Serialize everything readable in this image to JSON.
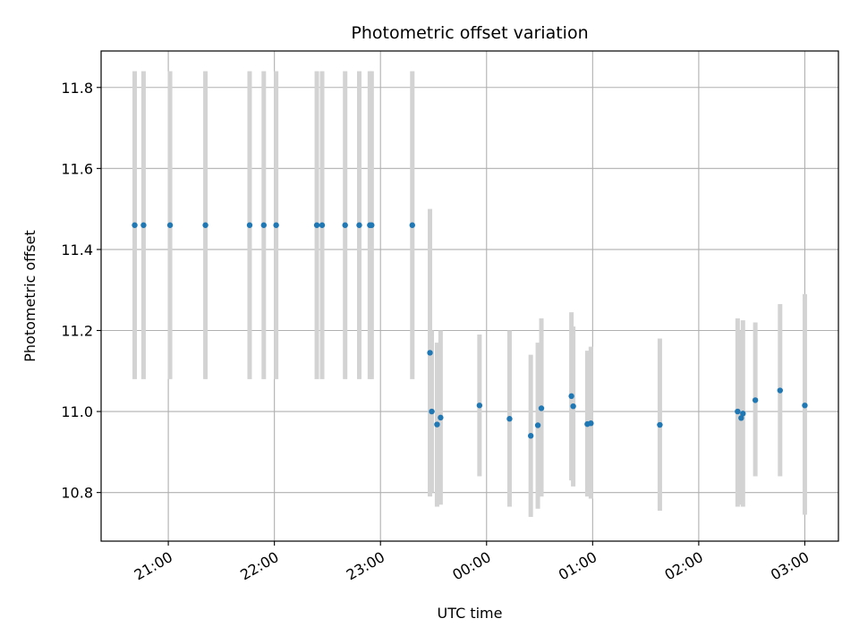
{
  "chart_data": {
    "type": "scatter",
    "title": "Photometric offset variation",
    "xlabel": "UTC time",
    "ylabel": "Photometric offset",
    "x_ticks": [
      "21:00",
      "22:00",
      "23:00",
      "00:00",
      "01:00",
      "02:00",
      "03:00"
    ],
    "y_ticks": [
      "10.8",
      "11.0",
      "11.2",
      "11.4",
      "11.6",
      "11.8"
    ],
    "xlim": [
      "20:22",
      "03:19"
    ],
    "ylim": [
      10.68,
      11.89
    ],
    "grid": true,
    "colors": {
      "point": "#1f77b4",
      "errorbar": "#d3d3d3",
      "grid": "#b0b0b0"
    },
    "points": [
      {
        "t": "20:41",
        "y": 11.46,
        "lo": 11.08,
        "hi": 11.84
      },
      {
        "t": "20:46",
        "y": 11.46,
        "lo": 11.08,
        "hi": 11.84
      },
      {
        "t": "21:01",
        "y": 11.46,
        "lo": 11.08,
        "hi": 11.84
      },
      {
        "t": "21:21",
        "y": 11.46,
        "lo": 11.08,
        "hi": 11.84
      },
      {
        "t": "21:46",
        "y": 11.46,
        "lo": 11.08,
        "hi": 11.84
      },
      {
        "t": "21:54",
        "y": 11.46,
        "lo": 11.08,
        "hi": 11.84
      },
      {
        "t": "22:01",
        "y": 11.46,
        "lo": 11.08,
        "hi": 11.84
      },
      {
        "t": "22:24",
        "y": 11.46,
        "lo": 11.08,
        "hi": 11.84
      },
      {
        "t": "22:27",
        "y": 11.46,
        "lo": 11.08,
        "hi": 11.84
      },
      {
        "t": "22:40",
        "y": 11.46,
        "lo": 11.08,
        "hi": 11.84
      },
      {
        "t": "22:48",
        "y": 11.46,
        "lo": 11.08,
        "hi": 11.84
      },
      {
        "t": "22:54",
        "y": 11.46,
        "lo": 11.08,
        "hi": 11.84
      },
      {
        "t": "22:55",
        "y": 11.46,
        "lo": 11.08,
        "hi": 11.84
      },
      {
        "t": "23:18",
        "y": 11.46,
        "lo": 11.08,
        "hi": 11.84
      },
      {
        "t": "23:28",
        "y": 11.145,
        "lo": 10.79,
        "hi": 11.5
      },
      {
        "t": "23:29",
        "y": 11.0,
        "lo": 10.8,
        "hi": 11.2
      },
      {
        "t": "23:32",
        "y": 10.968,
        "lo": 10.765,
        "hi": 11.17
      },
      {
        "t": "23:34",
        "y": 10.985,
        "lo": 10.77,
        "hi": 11.2
      },
      {
        "t": "23:56",
        "y": 11.015,
        "lo": 10.84,
        "hi": 11.19
      },
      {
        "t": "00:13",
        "y": 10.982,
        "lo": 10.765,
        "hi": 11.2
      },
      {
        "t": "00:25",
        "y": 10.94,
        "lo": 10.74,
        "hi": 11.14
      },
      {
        "t": "00:29",
        "y": 10.966,
        "lo": 10.76,
        "hi": 11.17
      },
      {
        "t": "00:31",
        "y": 11.008,
        "lo": 10.79,
        "hi": 11.23
      },
      {
        "t": "00:48",
        "y": 11.038,
        "lo": 10.83,
        "hi": 11.245
      },
      {
        "t": "00:49",
        "y": 11.013,
        "lo": 10.815,
        "hi": 11.21
      },
      {
        "t": "00:57",
        "y": 10.969,
        "lo": 10.79,
        "hi": 11.15
      },
      {
        "t": "00:59",
        "y": 10.971,
        "lo": 10.785,
        "hi": 11.16
      },
      {
        "t": "01:38",
        "y": 10.967,
        "lo": 10.755,
        "hi": 11.18
      },
      {
        "t": "02:22",
        "y": 11.0,
        "lo": 10.765,
        "hi": 11.23
      },
      {
        "t": "02:24",
        "y": 10.984,
        "lo": 10.77,
        "hi": 11.2
      },
      {
        "t": "02:25",
        "y": 10.995,
        "lo": 10.765,
        "hi": 11.225
      },
      {
        "t": "02:32",
        "y": 11.028,
        "lo": 10.84,
        "hi": 11.22
      },
      {
        "t": "02:46",
        "y": 11.052,
        "lo": 10.84,
        "hi": 11.265
      },
      {
        "t": "03:00",
        "y": 11.015,
        "lo": 10.745,
        "hi": 11.29
      }
    ]
  }
}
